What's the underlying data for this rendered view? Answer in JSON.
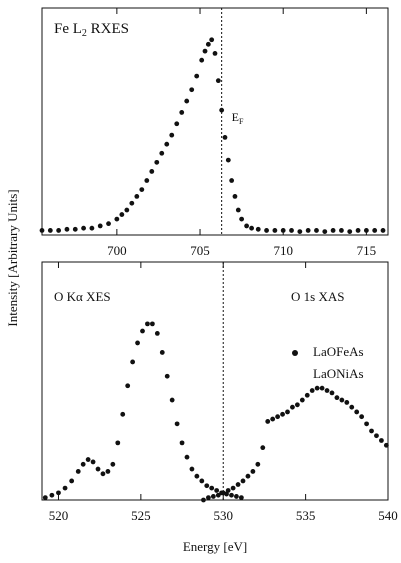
{
  "ylabel": "Intensity [Arbitrary Units]",
  "chart_data": [
    {
      "type": "scatter",
      "title_parts": [
        "Fe L",
        "2",
        " RXES"
      ],
      "fermi_label_parts": [
        "E",
        "F"
      ],
      "fermi": 706.3,
      "xlim": [
        695.5,
        716.3
      ],
      "ylim": [
        0,
        1
      ],
      "xticks": [
        700,
        705,
        710,
        715
      ],
      "color": "#111111",
      "series": [
        {
          "x": [
            695.5,
            696,
            696.5,
            697,
            697.5,
            698,
            698.5,
            699,
            699.5,
            700,
            700.3,
            700.6,
            700.9,
            701.2,
            701.5,
            701.8,
            702.1,
            702.4,
            702.7,
            703,
            703.3,
            703.6,
            703.9,
            704.2,
            704.5,
            704.8,
            705.1,
            705.3,
            705.5,
            705.7,
            705.9,
            706.1,
            706.3,
            706.5,
            706.7,
            706.9,
            707.1,
            707.3,
            707.5,
            707.8,
            708.1,
            708.5,
            709,
            709.5,
            710,
            710.5,
            711,
            711.5,
            712,
            712.5,
            713,
            713.5,
            714,
            714.5,
            715,
            715.5,
            716
          ],
          "values": [
            0.02,
            0.02,
            0.02,
            0.025,
            0.025,
            0.03,
            0.03,
            0.04,
            0.05,
            0.07,
            0.09,
            0.11,
            0.14,
            0.17,
            0.2,
            0.24,
            0.28,
            0.32,
            0.36,
            0.4,
            0.44,
            0.49,
            0.54,
            0.59,
            0.64,
            0.7,
            0.77,
            0.81,
            0.84,
            0.86,
            0.8,
            0.68,
            0.55,
            0.43,
            0.33,
            0.24,
            0.17,
            0.11,
            0.07,
            0.04,
            0.03,
            0.025,
            0.02,
            0.02,
            0.02,
            0.02,
            0.015,
            0.02,
            0.02,
            0.015,
            0.02,
            0.02,
            0.015,
            0.02,
            0.02,
            0.02,
            0.02
          ]
        }
      ]
    },
    {
      "type": "scatter",
      "xlabel": "Energy [eV]",
      "fermi": 530,
      "annotations": [
        "O Kα XES",
        "O 1s XAS"
      ],
      "legend_entries": [
        "LaOFeAs",
        "LaONiAs"
      ],
      "xlim": [
        519,
        540
      ],
      "ylim": [
        0,
        1
      ],
      "xticks": [
        520,
        525,
        530,
        535,
        540
      ],
      "color": "#111111",
      "series": [
        {
          "x": [
            519.2,
            519.6,
            520,
            520.4,
            520.8,
            521.2,
            521.5,
            521.8,
            522.1,
            522.4,
            522.7,
            523,
            523.3,
            523.6,
            523.9,
            524.2,
            524.5,
            524.8,
            525.1,
            525.4,
            525.7,
            526,
            526.3,
            526.6,
            526.9,
            527.2,
            527.5,
            527.8,
            528.1,
            528.4,
            528.7,
            529,
            529.3,
            529.6,
            529.9,
            530.2,
            530.5,
            530.8,
            531.1
          ],
          "values": [
            0.01,
            0.02,
            0.03,
            0.05,
            0.08,
            0.12,
            0.15,
            0.17,
            0.16,
            0.13,
            0.11,
            0.12,
            0.15,
            0.24,
            0.36,
            0.48,
            0.58,
            0.66,
            0.71,
            0.74,
            0.74,
            0.7,
            0.62,
            0.52,
            0.42,
            0.32,
            0.24,
            0.18,
            0.13,
            0.1,
            0.08,
            0.06,
            0.05,
            0.04,
            0.03,
            0.025,
            0.02,
            0.015,
            0.01
          ]
        },
        {
          "x": [
            528.8,
            529.1,
            529.4,
            529.7,
            530,
            530.3,
            530.6,
            530.9,
            531.2,
            531.5,
            531.8,
            532.1,
            532.4,
            532.7,
            533,
            533.3,
            533.6,
            533.9,
            534.2,
            534.5,
            534.8,
            535.1,
            535.4,
            535.7,
            536,
            536.3,
            536.6,
            536.9,
            537.2,
            537.5,
            537.8,
            538.1,
            538.4,
            538.7,
            539,
            539.3,
            539.6,
            539.9
          ],
          "values": [
            0.0,
            0.01,
            0.015,
            0.02,
            0.03,
            0.04,
            0.05,
            0.065,
            0.08,
            0.1,
            0.12,
            0.15,
            0.22,
            0.33,
            0.34,
            0.35,
            0.36,
            0.37,
            0.39,
            0.4,
            0.42,
            0.44,
            0.46,
            0.47,
            0.47,
            0.46,
            0.45,
            0.43,
            0.42,
            0.41,
            0.39,
            0.37,
            0.35,
            0.32,
            0.29,
            0.27,
            0.25,
            0.23
          ]
        }
      ]
    }
  ]
}
